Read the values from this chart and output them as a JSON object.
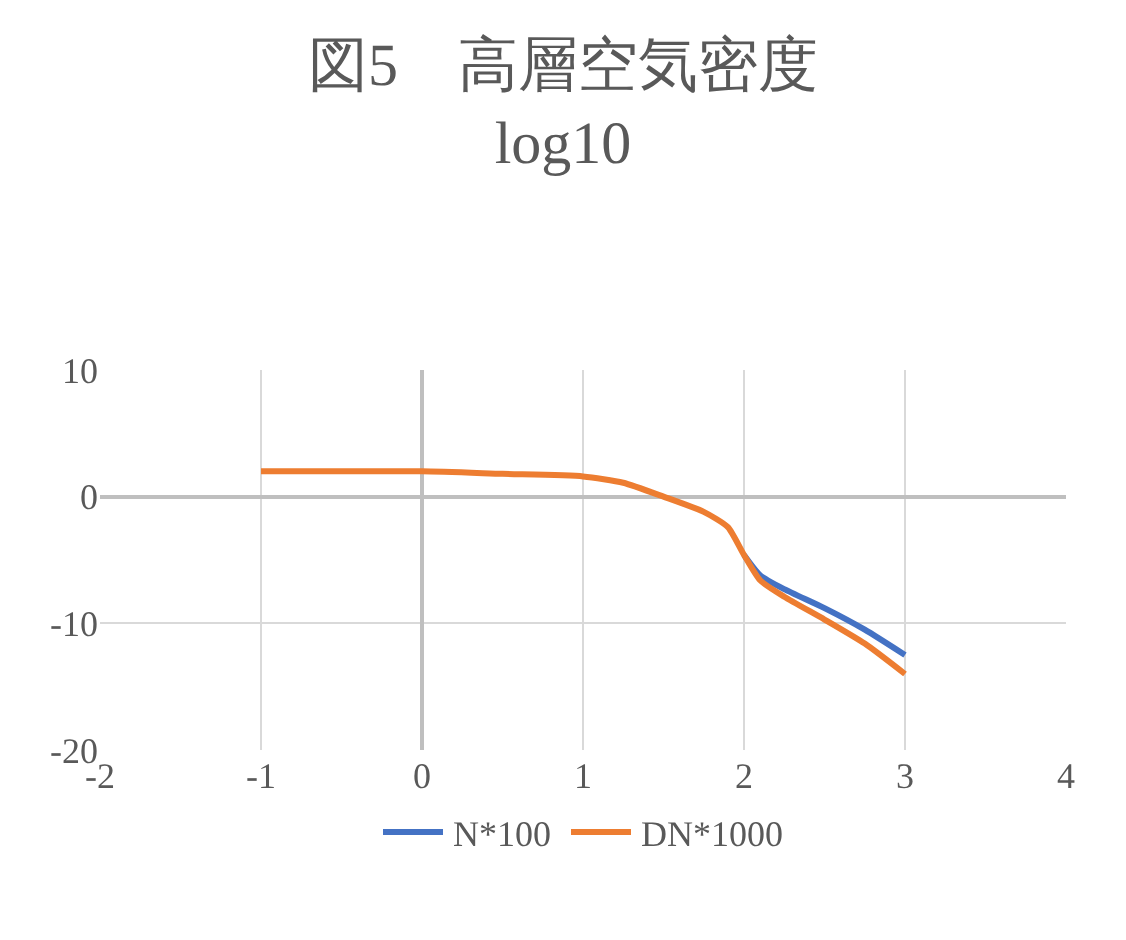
{
  "chart_data": {
    "type": "line",
    "title": "図5　高層空気密度\nlog10",
    "x": [
      -1,
      0,
      0.5,
      1,
      1.25,
      1.5,
      1.75,
      1.9,
      2,
      2.1,
      2.25,
      2.5,
      2.75,
      3
    ],
    "series": [
      {
        "name": "N*100",
        "color": "#4472c4",
        "values": [
          null,
          null,
          null,
          null,
          null,
          null,
          null,
          null,
          -4.6,
          -6.2,
          -7.3,
          -8.8,
          -10.5,
          -12.5
        ]
      },
      {
        "name": "DN*1000",
        "color": "#ed7d31",
        "values": [
          2.0,
          2.0,
          1.8,
          1.6,
          1.1,
          0,
          -1.2,
          -2.4,
          -4.6,
          -6.6,
          -7.9,
          -9.7,
          -11.6,
          -14.0
        ]
      }
    ],
    "xlim": [
      -2,
      4
    ],
    "xticks": [
      -2,
      -1,
      0,
      1,
      2,
      3,
      4
    ],
    "ylim": [
      -20,
      10
    ],
    "yticks": [
      -20,
      -10,
      0,
      10
    ],
    "grid": true,
    "legend": "bottom",
    "marker": "none",
    "line_style": "solid"
  }
}
